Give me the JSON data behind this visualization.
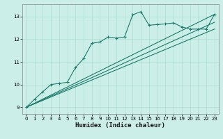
{
  "title": "",
  "xlabel": "Humidex (Indice chaleur)",
  "bg_color": "#cceee8",
  "grid_color": "#aaddcc",
  "line_color": "#1a7a6a",
  "x_ticks": [
    0,
    1,
    2,
    3,
    4,
    5,
    6,
    7,
    8,
    9,
    10,
    11,
    12,
    13,
    14,
    15,
    16,
    17,
    18,
    19,
    20,
    21,
    22,
    23
  ],
  "ylim": [
    8.7,
    13.55
  ],
  "xlim": [
    -0.5,
    23.5
  ],
  "yticks": [
    9,
    10,
    11,
    12,
    13
  ],
  "line1_x": [
    0,
    1,
    2,
    3,
    4,
    5,
    6,
    7,
    8,
    9,
    10,
    11,
    12,
    13,
    14,
    15,
    16,
    17,
    18,
    19,
    20,
    21,
    22,
    23
  ],
  "line1_y": [
    9.0,
    9.35,
    9.68,
    10.0,
    10.05,
    10.1,
    10.75,
    11.15,
    11.82,
    11.88,
    12.1,
    12.05,
    12.1,
    13.08,
    13.22,
    12.62,
    12.65,
    12.68,
    12.72,
    12.55,
    12.45,
    12.45,
    12.45,
    13.1
  ],
  "line2_x": [
    0,
    23
  ],
  "line2_y": [
    9.0,
    13.1
  ],
  "line3_x": [
    0,
    23
  ],
  "line3_y": [
    9.0,
    12.75
  ],
  "line4_x": [
    0,
    23
  ],
  "line4_y": [
    9.0,
    12.45
  ]
}
